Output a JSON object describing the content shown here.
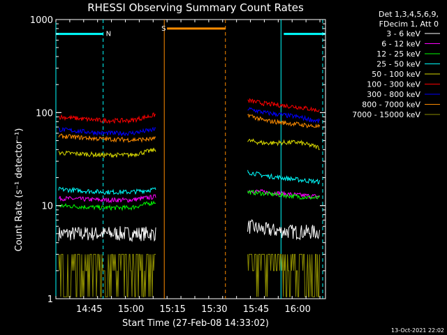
{
  "chart_data": {
    "type": "line",
    "title": "RHESSI Observing Summary Count Rates",
    "xlabel": "Start Time (27-Feb-08 14:33:02)",
    "ylabel": "Count Rate (s⁻¹ detector⁻¹)",
    "y_scale": "log",
    "ylim": [
      1,
      1000
    ],
    "xlim": [
      "14:33",
      "16:10"
    ],
    "y_ticks": [
      "1",
      "10",
      "100",
      "1000"
    ],
    "x_ticks": [
      "14:45",
      "15:00",
      "15:15",
      "15:30",
      "15:45",
      "16:00"
    ],
    "legend_header": [
      "Det 1,3,4,5,6,9,",
      "FDecim 1, Att 0"
    ],
    "series": [
      {
        "name": "3 - 6 keV",
        "color": "#ffffff",
        "segments": [
          {
            "t": [
              "14:34",
              "14:50",
              "15:00",
              "15:09"
            ],
            "y": [
              5,
              5,
              5,
              5
            ]
          },
          {
            "t": [
              "15:42",
              "15:48",
              "16:00",
              "16:08"
            ],
            "y": [
              6,
              5.5,
              5.2,
              5.2
            ]
          }
        ]
      },
      {
        "name": "6 - 12 keV",
        "color": "#ff00ff",
        "segments": [
          {
            "t": [
              "14:34",
              "14:50",
              "15:00",
              "15:09"
            ],
            "y": [
              12,
              11.5,
              11.5,
              12.5
            ]
          },
          {
            "t": [
              "15:42",
              "15:48",
              "16:00",
              "16:08"
            ],
            "y": [
              14.5,
              14,
              13,
              12.5
            ]
          }
        ]
      },
      {
        "name": "12 - 25 keV",
        "color": "#00ff00",
        "segments": [
          {
            "t": [
              "14:34",
              "14:50",
              "15:00",
              "15:09"
            ],
            "y": [
              10,
              9.5,
              9.5,
              11
            ]
          },
          {
            "t": [
              "15:42",
              "15:48",
              "16:00",
              "16:08"
            ],
            "y": [
              14,
              13.5,
              12.5,
              12
            ]
          }
        ]
      },
      {
        "name": "25 - 50 keV",
        "color": "#00ffff",
        "segments": [
          {
            "t": [
              "14:34",
              "14:50",
              "15:00",
              "15:09"
            ],
            "y": [
              15,
              14,
              14,
              15
            ]
          },
          {
            "t": [
              "15:42",
              "15:48",
              "16:00",
              "16:08"
            ],
            "y": [
              23,
              21,
              19,
              18
            ]
          }
        ]
      },
      {
        "name": "50 - 100 keV",
        "color": "#d8d800",
        "segments": [
          {
            "t": [
              "14:34",
              "14:50",
              "15:00",
              "15:09"
            ],
            "y": [
              37,
              35,
              35,
              40
            ]
          },
          {
            "t": [
              "15:42",
              "15:48",
              "16:00",
              "16:08"
            ],
            "y": [
              50,
              47,
              48,
              42
            ]
          }
        ]
      },
      {
        "name": "100 - 300 keV",
        "color": "#ff0000",
        "segments": [
          {
            "t": [
              "14:34",
              "14:50",
              "15:00",
              "15:09"
            ],
            "y": [
              90,
              82,
              82,
              95
            ]
          },
          {
            "t": [
              "15:42",
              "15:48",
              "16:00",
              "16:08"
            ],
            "y": [
              135,
              125,
              115,
              105
            ]
          }
        ]
      },
      {
        "name": "300 - 800 keV",
        "color": "#0000ff",
        "segments": [
          {
            "t": [
              "14:34",
              "14:50",
              "15:00",
              "15:09"
            ],
            "y": [
              66,
              60,
              60,
              66
            ]
          },
          {
            "t": [
              "15:42",
              "15:48",
              "16:00",
              "16:08"
            ],
            "y": [
              110,
              100,
              90,
              80
            ]
          }
        ]
      },
      {
        "name": "800 - 7000 keV",
        "color": "#ff8c00",
        "segments": [
          {
            "t": [
              "14:34",
              "14:50",
              "15:00",
              "15:09"
            ],
            "y": [
              56,
              52,
              51,
              52
            ]
          },
          {
            "t": [
              "15:42",
              "15:48",
              "16:00",
              "16:08"
            ],
            "y": [
              95,
              82,
              75,
              70
            ]
          }
        ]
      },
      {
        "name": "7000 - 15000 keV",
        "color": "#8b8b00",
        "segments": [
          {
            "t": [
              "14:34",
              "14:50",
              "15:00",
              "15:09"
            ],
            "y": [
              2,
              2,
              2,
              2
            ]
          },
          {
            "t": [
              "15:42",
              "15:48",
              "16:00",
              "16:08"
            ],
            "y": [
              2.5,
              2.5,
              2.5,
              2.5
            ]
          }
        ]
      }
    ],
    "flags": [
      {
        "label": "N",
        "color": "#00ffff",
        "y": 700,
        "start": "14:33",
        "end": "14:50"
      },
      {
        "label": "",
        "color": "#00ffff",
        "y": 700,
        "start": "15:55",
        "end": "16:10"
      },
      {
        "label": "S",
        "color": "#ff8c00",
        "y": 800,
        "start": "15:13",
        "end": "15:34"
      }
    ],
    "vertical_markers": [
      {
        "t": "14:33",
        "color": "#00ffff",
        "style": "solid"
      },
      {
        "t": "14:50",
        "color": "#00ffff",
        "style": "dashed"
      },
      {
        "t": "15:12",
        "color": "#ff8c00",
        "style": "solid"
      },
      {
        "t": "15:34",
        "color": "#ff8c00",
        "style": "dashed"
      },
      {
        "t": "15:54",
        "color": "#00ffff",
        "style": "solid"
      },
      {
        "t": "16:09",
        "color": "#00ffff",
        "style": "dashed"
      }
    ],
    "footer_date": "13-Oct-2021 22:02"
  }
}
